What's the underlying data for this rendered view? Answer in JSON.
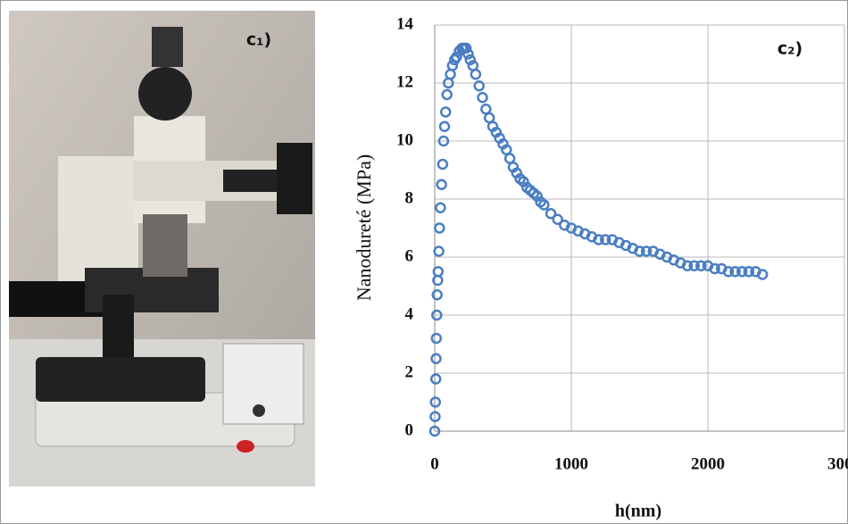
{
  "panel_labels": [
    "c₁)",
    "c₂)"
  ],
  "chart_data": {
    "type": "scatter",
    "y_label": "Nanodureté (MPa)",
    "x_label": "h(nm)",
    "xlim": [
      0,
      3000
    ],
    "xticks": [
      0,
      1000,
      2000,
      3000
    ],
    "ylim": [
      0,
      14
    ],
    "yticks": [
      0,
      2,
      4,
      6,
      8,
      10,
      12,
      14
    ],
    "grid": true,
    "series": [
      {
        "color": "#4a7ec2",
        "x": [
          0,
          3,
          5,
          8,
          10,
          12,
          15,
          18,
          22,
          25,
          30,
          35,
          42,
          50,
          58,
          65,
          72,
          80,
          90,
          100,
          115,
          130,
          145,
          160,
          180,
          200,
          215,
          230,
          245,
          260,
          280,
          300,
          325,
          350,
          375,
          400,
          425,
          450,
          475,
          500,
          525,
          550,
          575,
          600,
          625,
          650,
          675,
          700,
          725,
          750,
          775,
          800,
          850,
          900,
          950,
          1000,
          1050,
          1100,
          1150,
          1200,
          1250,
          1300,
          1350,
          1400,
          1450,
          1500,
          1550,
          1600,
          1650,
          1700,
          1750,
          1800,
          1850,
          1900,
          1950,
          2000,
          2050,
          2100,
          2150,
          2200,
          2250,
          2300,
          2350,
          2400
        ],
        "values": [
          0,
          0.5,
          1,
          1.8,
          2.5,
          3.2,
          4,
          4.7,
          5.2,
          5.5,
          6.2,
          7,
          7.7,
          8.5,
          9.2,
          10,
          10.5,
          11,
          11.6,
          12,
          12.3,
          12.6,
          12.8,
          12.9,
          13.1,
          13.2,
          13.2,
          13.2,
          13,
          12.8,
          12.6,
          12.3,
          11.9,
          11.5,
          11.1,
          10.8,
          10.5,
          10.3,
          10.1,
          9.9,
          9.7,
          9.4,
          9.1,
          8.9,
          8.7,
          8.6,
          8.4,
          8.3,
          8.2,
          8.1,
          7.9,
          7.8,
          7.5,
          7.3,
          7.1,
          7.0,
          6.9,
          6.8,
          6.7,
          6.6,
          6.6,
          6.6,
          6.5,
          6.4,
          6.3,
          6.2,
          6.2,
          6.2,
          6.1,
          6.0,
          5.9,
          5.8,
          5.7,
          5.7,
          5.7,
          5.7,
          5.6,
          5.6,
          5.5,
          5.5,
          5.5,
          5.5,
          5.5,
          5.4
        ]
      }
    ]
  }
}
